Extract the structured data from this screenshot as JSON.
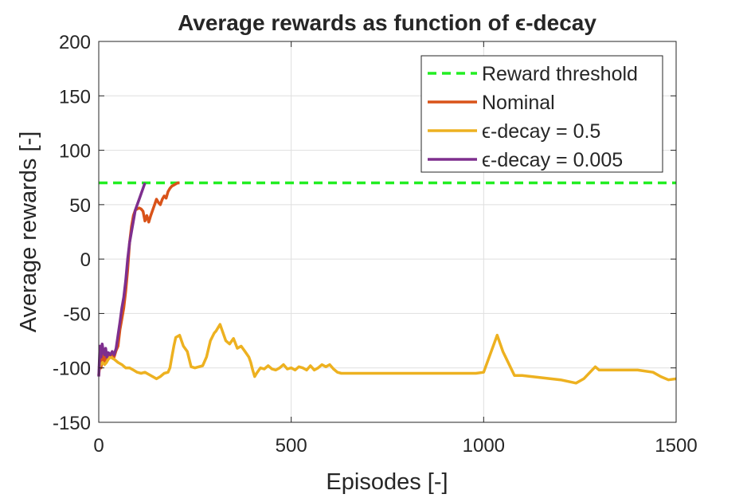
{
  "chart_data": {
    "type": "line",
    "title": "Average rewards as function of ϵ-decay",
    "xlabel": "Episodes [-]",
    "ylabel": "Average rewards [-]",
    "xlim": [
      0,
      1500
    ],
    "ylim": [
      -150,
      200
    ],
    "xticks": [
      0,
      500,
      1000,
      1500
    ],
    "yticks": [
      -150,
      -100,
      -50,
      0,
      50,
      100,
      150,
      200
    ],
    "grid": true,
    "legend_position": "top-right",
    "series": [
      {
        "name": "Reward threshold",
        "color": "#22ee22",
        "dashed": true,
        "x": [
          0,
          1500
        ],
        "y": [
          70,
          70
        ]
      },
      {
        "name": "Nominal",
        "color": "#d95319",
        "dashed": false,
        "x": [
          0,
          3,
          6,
          9,
          12,
          15,
          18,
          21,
          25,
          30,
          35,
          40,
          45,
          50,
          55,
          60,
          65,
          70,
          75,
          80,
          85,
          90,
          95,
          100,
          105,
          110,
          115,
          120,
          125,
          130,
          135,
          140,
          145,
          150,
          155,
          160,
          165,
          170,
          175,
          180,
          185,
          190,
          195,
          200,
          205,
          210
        ],
        "y": [
          -107,
          -95,
          -100,
          -90,
          -85,
          -95,
          -88,
          -92,
          -88,
          -90,
          -85,
          -90,
          -84,
          -80,
          -65,
          -55,
          -45,
          -30,
          -10,
          15,
          30,
          40,
          45,
          46,
          47,
          46,
          44,
          35,
          40,
          34,
          40,
          45,
          50,
          55,
          52,
          50,
          55,
          58,
          56,
          62,
          65,
          67,
          68,
          69,
          70,
          70
        ]
      },
      {
        "name": "ϵ-decay = 0.5",
        "color": "#edb120",
        "dashed": false,
        "x": [
          0,
          5,
          10,
          15,
          20,
          25,
          30,
          40,
          50,
          60,
          70,
          80,
          90,
          100,
          110,
          120,
          130,
          140,
          150,
          160,
          170,
          180,
          185,
          190,
          195,
          200,
          210,
          220,
          230,
          240,
          250,
          260,
          270,
          280,
          290,
          300,
          305,
          310,
          315,
          320,
          330,
          340,
          350,
          360,
          370,
          380,
          390,
          395,
          400,
          405,
          410,
          420,
          430,
          440,
          450,
          460,
          470,
          480,
          490,
          500,
          510,
          520,
          530,
          540,
          550,
          560,
          570,
          580,
          590,
          600,
          610,
          620,
          630,
          700,
          800,
          900,
          950,
          980,
          1000,
          1035,
          1050,
          1080,
          1100,
          1150,
          1200,
          1240,
          1260,
          1290,
          1300,
          1400,
          1440,
          1460,
          1480,
          1500
        ],
        "y": [
          -100,
          -97,
          -95,
          -97,
          -95,
          -92,
          -90,
          -92,
          -95,
          -97,
          -100,
          -100,
          -102,
          -104,
          -105,
          -104,
          -106,
          -108,
          -110,
          -108,
          -105,
          -104,
          -100,
          -90,
          -80,
          -72,
          -70,
          -80,
          -85,
          -99,
          -100,
          -99,
          -98,
          -90,
          -75,
          -68,
          -66,
          -63,
          -60,
          -65,
          -75,
          -78,
          -73,
          -82,
          -80,
          -85,
          -90,
          -95,
          -102,
          -108,
          -105,
          -100,
          -101,
          -98,
          -101,
          -102,
          -100,
          -97,
          -101,
          -100,
          -102,
          -99,
          -100,
          -102,
          -98,
          -102,
          -100,
          -97,
          -99,
          -97,
          -101,
          -104,
          -105,
          -105,
          -105,
          -105,
          -105,
          -105,
          -104,
          -70,
          -85,
          -107,
          -107,
          -109,
          -111,
          -114,
          -110,
          -99,
          -102,
          -102,
          -104,
          -108,
          -111,
          -110
        ]
      },
      {
        "name": "ϵ-decay = 0.005",
        "color": "#7e2f8e",
        "dashed": false,
        "x": [
          0,
          3,
          6,
          9,
          12,
          15,
          18,
          21,
          25,
          30,
          35,
          40,
          45,
          50,
          55,
          60,
          65,
          70,
          75,
          80,
          85,
          90,
          95,
          100,
          105,
          110,
          115,
          120
        ],
        "y": [
          -108,
          -80,
          -90,
          -78,
          -85,
          -88,
          -82,
          -90,
          -86,
          -88,
          -85,
          -88,
          -82,
          -70,
          -58,
          -45,
          -35,
          -20,
          0,
          15,
          25,
          35,
          45,
          50,
          55,
          60,
          65,
          70
        ]
      }
    ]
  }
}
